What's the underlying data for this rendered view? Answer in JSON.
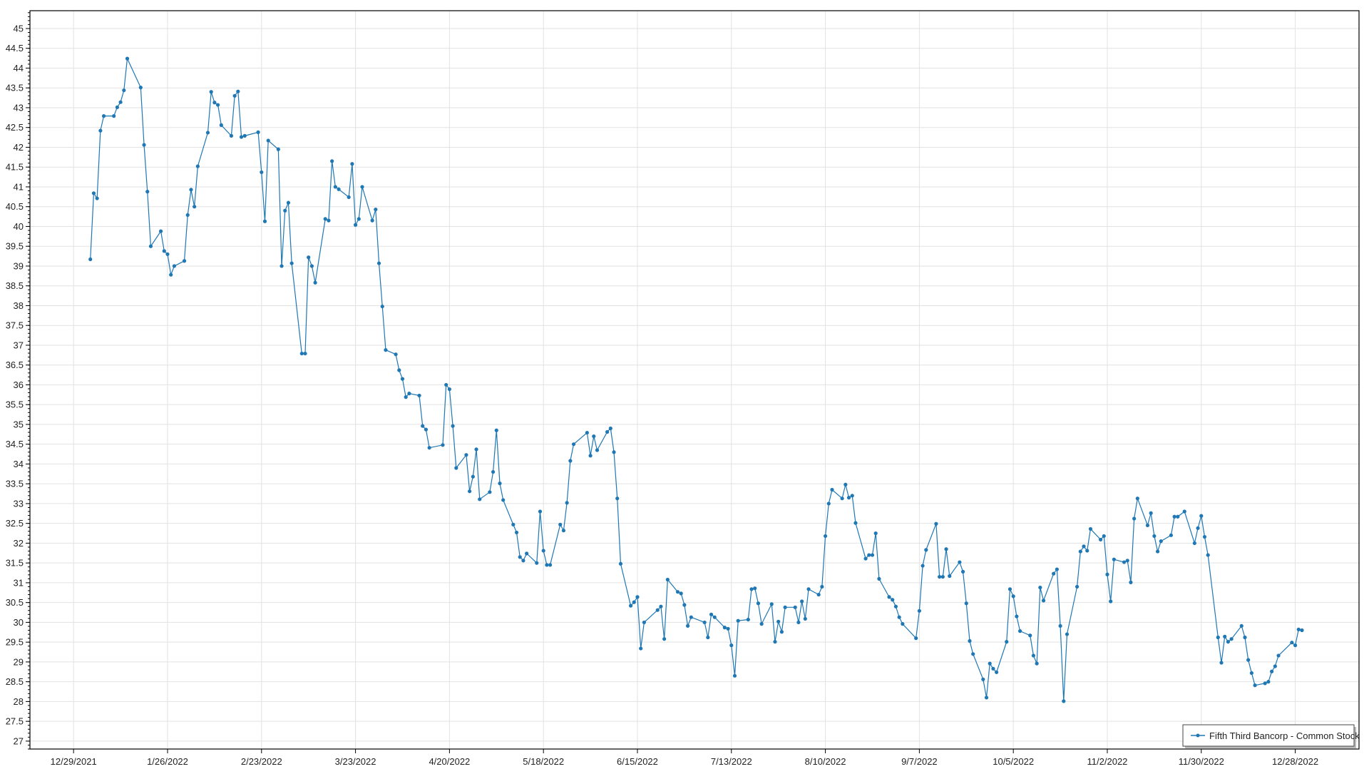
{
  "chart_data": {
    "type": "line",
    "title": "",
    "xlabel": "",
    "ylabel": "",
    "xlim": [
      "2021-12-16",
      "2023-01-16"
    ],
    "ylim": [
      26.8,
      45.45
    ],
    "grid": true,
    "legend_placement": "bottom-right",
    "line_color": "#1f77b4",
    "x_ticks": [
      "12/29/2021",
      "1/26/2022",
      "2/23/2022",
      "3/23/2022",
      "4/20/2022",
      "5/18/2022",
      "6/15/2022",
      "7/13/2022",
      "8/10/2022",
      "9/7/2022",
      "10/5/2022",
      "11/2/2022",
      "11/30/2022",
      "12/28/2022"
    ],
    "y_ticks": [
      "27",
      "27.5",
      "28",
      "28.5",
      "29",
      "29.5",
      "30",
      "30.5",
      "31",
      "31.5",
      "32",
      "32.5",
      "33",
      "33.5",
      "34",
      "34.5",
      "35",
      "35.5",
      "36",
      "36.5",
      "37",
      "37.5",
      "38",
      "38.5",
      "39",
      "39.5",
      "40",
      "40.5",
      "41",
      "41.5",
      "42",
      "42.5",
      "43",
      "43.5",
      "44",
      "44.5",
      "45"
    ],
    "series": [
      {
        "name": "Fifth Third Bancorp - Common Stock",
        "points": [
          [
            "2022-01-03",
            39.17
          ],
          [
            "2022-01-04",
            40.84
          ],
          [
            "2022-01-05",
            40.71
          ],
          [
            "2022-01-06",
            42.42
          ],
          [
            "2022-01-07",
            42.79
          ],
          [
            "2022-01-10",
            42.79
          ],
          [
            "2022-01-11",
            43.01
          ],
          [
            "2022-01-12",
            43.14
          ],
          [
            "2022-01-13",
            43.44
          ],
          [
            "2022-01-14",
            44.24
          ],
          [
            "2022-01-18",
            43.51
          ],
          [
            "2022-01-19",
            42.06
          ],
          [
            "2022-01-20",
            40.88
          ],
          [
            "2022-01-21",
            39.5
          ],
          [
            "2022-01-24",
            39.88
          ],
          [
            "2022-01-25",
            39.38
          ],
          [
            "2022-01-26",
            39.3
          ],
          [
            "2022-01-27",
            38.78
          ],
          [
            "2022-01-28",
            39.0
          ],
          [
            "2022-01-31",
            39.13
          ],
          [
            "2022-02-01",
            40.29
          ],
          [
            "2022-02-02",
            40.93
          ],
          [
            "2022-02-03",
            40.5
          ],
          [
            "2022-02-04",
            41.52
          ],
          [
            "2022-02-07",
            42.37
          ],
          [
            "2022-02-08",
            43.4
          ],
          [
            "2022-02-09",
            43.13
          ],
          [
            "2022-02-10",
            43.07
          ],
          [
            "2022-02-11",
            42.56
          ],
          [
            "2022-02-14",
            42.29
          ],
          [
            "2022-02-15",
            43.3
          ],
          [
            "2022-02-16",
            43.41
          ],
          [
            "2022-02-17",
            42.26
          ],
          [
            "2022-02-18",
            42.29
          ],
          [
            "2022-02-22",
            42.38
          ],
          [
            "2022-02-23",
            41.37
          ],
          [
            "2022-02-24",
            40.13
          ],
          [
            "2022-02-25",
            42.17
          ],
          [
            "2022-02-28",
            41.95
          ],
          [
            "2022-03-01",
            39.0
          ],
          [
            "2022-03-02",
            40.4
          ],
          [
            "2022-03-03",
            40.6
          ],
          [
            "2022-03-04",
            39.07
          ],
          [
            "2022-03-07",
            36.79
          ],
          [
            "2022-03-08",
            36.79
          ],
          [
            "2022-03-09",
            39.22
          ],
          [
            "2022-03-10",
            39.0
          ],
          [
            "2022-03-11",
            38.58
          ],
          [
            "2022-03-14",
            40.19
          ],
          [
            "2022-03-15",
            40.15
          ],
          [
            "2022-03-16",
            41.65
          ],
          [
            "2022-03-17",
            41.0
          ],
          [
            "2022-03-18",
            40.94
          ],
          [
            "2022-03-21",
            40.74
          ],
          [
            "2022-03-22",
            41.58
          ],
          [
            "2022-03-23",
            40.04
          ],
          [
            "2022-03-24",
            40.19
          ],
          [
            "2022-03-25",
            41.0
          ],
          [
            "2022-03-28",
            40.15
          ],
          [
            "2022-03-29",
            40.43
          ],
          [
            "2022-03-30",
            39.07
          ],
          [
            "2022-03-31",
            37.98
          ],
          [
            "2022-04-01",
            36.88
          ],
          [
            "2022-04-04",
            36.77
          ],
          [
            "2022-04-05",
            36.37
          ],
          [
            "2022-04-06",
            36.15
          ],
          [
            "2022-04-07",
            35.69
          ],
          [
            "2022-04-08",
            35.78
          ],
          [
            "2022-04-11",
            35.73
          ],
          [
            "2022-04-12",
            34.96
          ],
          [
            "2022-04-13",
            34.87
          ],
          [
            "2022-04-14",
            34.41
          ],
          [
            "2022-04-18",
            34.48
          ],
          [
            "2022-04-19",
            36.0
          ],
          [
            "2022-04-20",
            35.89
          ],
          [
            "2022-04-21",
            34.96
          ],
          [
            "2022-04-22",
            33.9
          ],
          [
            "2022-04-25",
            34.23
          ],
          [
            "2022-04-26",
            33.31
          ],
          [
            "2022-04-27",
            33.68
          ],
          [
            "2022-04-28",
            34.37
          ],
          [
            "2022-04-29",
            33.11
          ],
          [
            "2022-05-02",
            33.29
          ],
          [
            "2022-05-03",
            33.8
          ],
          [
            "2022-05-04",
            34.85
          ],
          [
            "2022-05-05",
            33.51
          ],
          [
            "2022-05-06",
            33.09
          ],
          [
            "2022-05-09",
            32.47
          ],
          [
            "2022-05-10",
            32.27
          ],
          [
            "2022-05-11",
            31.65
          ],
          [
            "2022-05-12",
            31.56
          ],
          [
            "2022-05-13",
            31.74
          ],
          [
            "2022-05-16",
            31.5
          ],
          [
            "2022-05-17",
            32.8
          ],
          [
            "2022-05-18",
            31.81
          ],
          [
            "2022-05-19",
            31.45
          ],
          [
            "2022-05-20",
            31.45
          ],
          [
            "2022-05-23",
            32.47
          ],
          [
            "2022-05-24",
            32.32
          ],
          [
            "2022-05-25",
            33.02
          ],
          [
            "2022-05-26",
            34.08
          ],
          [
            "2022-05-27",
            34.5
          ],
          [
            "2022-05-31",
            34.79
          ],
          [
            "2022-06-01",
            34.21
          ],
          [
            "2022-06-02",
            34.7
          ],
          [
            "2022-06-03",
            34.35
          ],
          [
            "2022-06-06",
            34.81
          ],
          [
            "2022-06-07",
            34.9
          ],
          [
            "2022-06-08",
            34.3
          ],
          [
            "2022-06-09",
            33.13
          ],
          [
            "2022-06-10",
            31.48
          ],
          [
            "2022-06-13",
            30.42
          ],
          [
            "2022-06-14",
            30.51
          ],
          [
            "2022-06-15",
            30.64
          ],
          [
            "2022-06-16",
            29.34
          ],
          [
            "2022-06-17",
            30.0
          ],
          [
            "2022-06-21",
            30.31
          ],
          [
            "2022-06-22",
            30.4
          ],
          [
            "2022-06-23",
            29.58
          ],
          [
            "2022-06-24",
            31.08
          ],
          [
            "2022-06-27",
            30.77
          ],
          [
            "2022-06-28",
            30.73
          ],
          [
            "2022-06-29",
            30.44
          ],
          [
            "2022-06-30",
            29.91
          ],
          [
            "2022-07-01",
            30.13
          ],
          [
            "2022-07-05",
            30.0
          ],
          [
            "2022-07-06",
            29.62
          ],
          [
            "2022-07-07",
            30.2
          ],
          [
            "2022-07-08",
            30.13
          ],
          [
            "2022-07-11",
            29.87
          ],
          [
            "2022-07-12",
            29.84
          ],
          [
            "2022-07-13",
            29.42
          ],
          [
            "2022-07-14",
            28.65
          ],
          [
            "2022-07-15",
            30.04
          ],
          [
            "2022-07-18",
            30.07
          ],
          [
            "2022-07-19",
            30.84
          ],
          [
            "2022-07-20",
            30.86
          ],
          [
            "2022-07-21",
            30.48
          ],
          [
            "2022-07-22",
            29.96
          ],
          [
            "2022-07-25",
            30.46
          ],
          [
            "2022-07-26",
            29.51
          ],
          [
            "2022-07-27",
            30.02
          ],
          [
            "2022-07-28",
            29.76
          ],
          [
            "2022-07-29",
            30.38
          ],
          [
            "2022-08-01",
            30.38
          ],
          [
            "2022-08-02",
            30.0
          ],
          [
            "2022-08-03",
            30.53
          ],
          [
            "2022-08-04",
            30.09
          ],
          [
            "2022-08-05",
            30.84
          ],
          [
            "2022-08-08",
            30.7
          ],
          [
            "2022-08-09",
            30.9
          ],
          [
            "2022-08-10",
            32.18
          ],
          [
            "2022-08-11",
            33.0
          ],
          [
            "2022-08-12",
            33.35
          ],
          [
            "2022-08-15",
            33.13
          ],
          [
            "2022-08-16",
            33.48
          ],
          [
            "2022-08-17",
            33.15
          ],
          [
            "2022-08-18",
            33.2
          ],
          [
            "2022-08-19",
            32.51
          ],
          [
            "2022-08-22",
            31.61
          ],
          [
            "2022-08-23",
            31.7
          ],
          [
            "2022-08-24",
            31.7
          ],
          [
            "2022-08-25",
            32.25
          ],
          [
            "2022-08-26",
            31.1
          ],
          [
            "2022-08-29",
            30.64
          ],
          [
            "2022-08-30",
            30.57
          ],
          [
            "2022-08-31",
            30.4
          ],
          [
            "2022-09-01",
            30.13
          ],
          [
            "2022-09-02",
            29.96
          ],
          [
            "2022-09-06",
            29.6
          ],
          [
            "2022-09-07",
            30.29
          ],
          [
            "2022-09-08",
            31.43
          ],
          [
            "2022-09-09",
            31.83
          ],
          [
            "2022-09-12",
            32.49
          ],
          [
            "2022-09-13",
            31.15
          ],
          [
            "2022-09-14",
            31.15
          ],
          [
            "2022-09-15",
            31.85
          ],
          [
            "2022-09-16",
            31.17
          ],
          [
            "2022-09-19",
            31.52
          ],
          [
            "2022-09-20",
            31.28
          ],
          [
            "2022-09-21",
            30.48
          ],
          [
            "2022-09-22",
            29.53
          ],
          [
            "2022-09-23",
            29.2
          ],
          [
            "2022-09-26",
            28.56
          ],
          [
            "2022-09-27",
            28.1
          ],
          [
            "2022-09-28",
            28.96
          ],
          [
            "2022-09-29",
            28.83
          ],
          [
            "2022-09-30",
            28.74
          ],
          [
            "2022-10-03",
            29.51
          ],
          [
            "2022-10-04",
            30.84
          ],
          [
            "2022-10-05",
            30.66
          ],
          [
            "2022-10-06",
            30.15
          ],
          [
            "2022-10-07",
            29.78
          ],
          [
            "2022-10-10",
            29.67
          ],
          [
            "2022-10-11",
            29.16
          ],
          [
            "2022-10-12",
            28.96
          ],
          [
            "2022-10-13",
            30.88
          ],
          [
            "2022-10-14",
            30.55
          ],
          [
            "2022-10-17",
            31.23
          ],
          [
            "2022-10-18",
            31.34
          ],
          [
            "2022-10-19",
            29.91
          ],
          [
            "2022-10-20",
            28.01
          ],
          [
            "2022-10-21",
            29.7
          ],
          [
            "2022-10-24",
            30.9
          ],
          [
            "2022-10-25",
            31.79
          ],
          [
            "2022-10-26",
            31.92
          ],
          [
            "2022-10-27",
            31.81
          ],
          [
            "2022-10-28",
            32.36
          ],
          [
            "2022-10-31",
            32.09
          ],
          [
            "2022-11-01",
            32.18
          ],
          [
            "2022-11-02",
            31.21
          ],
          [
            "2022-11-03",
            30.53
          ],
          [
            "2022-11-04",
            31.59
          ],
          [
            "2022-11-07",
            31.52
          ],
          [
            "2022-11-08",
            31.56
          ],
          [
            "2022-11-09",
            31.01
          ],
          [
            "2022-11-10",
            32.62
          ],
          [
            "2022-11-11",
            33.13
          ],
          [
            "2022-11-14",
            32.45
          ],
          [
            "2022-11-15",
            32.76
          ],
          [
            "2022-11-16",
            32.18
          ],
          [
            "2022-11-17",
            31.79
          ],
          [
            "2022-11-18",
            32.05
          ],
          [
            "2022-11-21",
            32.2
          ],
          [
            "2022-11-22",
            32.67
          ],
          [
            "2022-11-23",
            32.67
          ],
          [
            "2022-11-25",
            32.8
          ],
          [
            "2022-11-28",
            32.0
          ],
          [
            "2022-11-29",
            32.38
          ],
          [
            "2022-11-30",
            32.69
          ],
          [
            "2022-12-01",
            32.16
          ],
          [
            "2022-12-02",
            31.7
          ],
          [
            "2022-12-05",
            29.62
          ],
          [
            "2022-12-06",
            28.98
          ],
          [
            "2022-12-07",
            29.64
          ],
          [
            "2022-12-08",
            29.51
          ],
          [
            "2022-12-09",
            29.58
          ],
          [
            "2022-12-12",
            29.91
          ],
          [
            "2022-12-13",
            29.62
          ],
          [
            "2022-12-14",
            29.05
          ],
          [
            "2022-12-15",
            28.72
          ],
          [
            "2022-12-16",
            28.41
          ],
          [
            "2022-12-19",
            28.46
          ],
          [
            "2022-12-20",
            28.5
          ],
          [
            "2022-12-21",
            28.76
          ],
          [
            "2022-12-22",
            28.89
          ],
          [
            "2022-12-23",
            29.16
          ],
          [
            "2022-12-27",
            29.49
          ],
          [
            "2022-12-28",
            29.42
          ],
          [
            "2022-12-29",
            29.82
          ],
          [
            "2022-12-30",
            29.8
          ]
        ]
      }
    ]
  }
}
